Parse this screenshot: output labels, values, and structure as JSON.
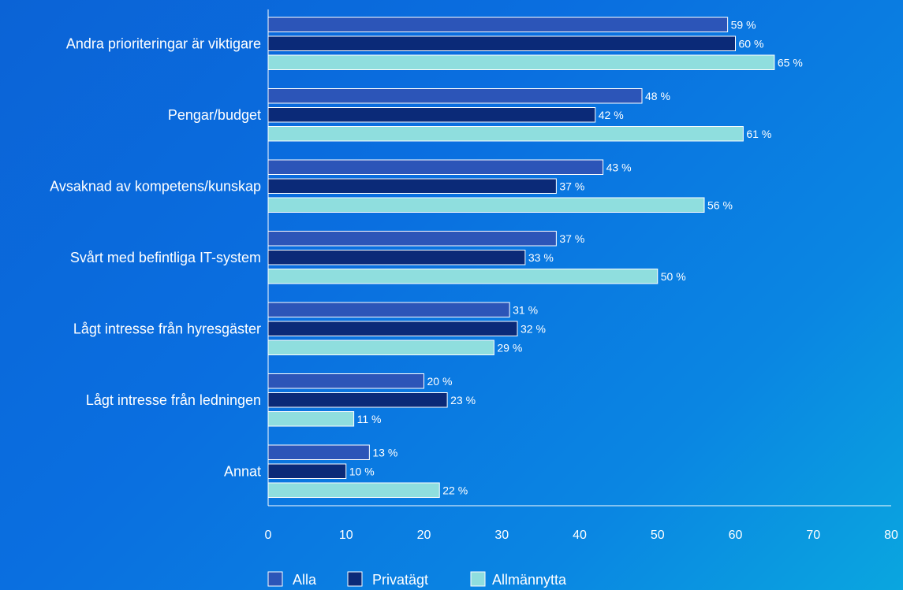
{
  "chart_data": {
    "type": "bar",
    "orientation": "horizontal",
    "categories": [
      "Andra prioriteringar är viktigare",
      "Pengar/budget",
      "Avsaknad av kompetens/kunskap",
      "Svårt med befintliga IT-system",
      "Lågt intresse från hyresgäster",
      "Lågt intresse från ledningen",
      "Annat"
    ],
    "series": [
      {
        "name": "Alla",
        "color": "#2c55b8",
        "values": [
          59,
          48,
          43,
          37,
          31,
          20,
          13
        ]
      },
      {
        "name": "Privatägt",
        "color": "#0b2a78",
        "values": [
          60,
          42,
          37,
          33,
          32,
          23,
          10
        ]
      },
      {
        "name": "Allmännytta",
        "color": "#8fdede",
        "values": [
          65,
          61,
          56,
          50,
          29,
          11,
          22
        ]
      }
    ],
    "value_suffix": " %",
    "xlim": [
      0,
      80
    ],
    "xticks": [
      0,
      10,
      20,
      30,
      40,
      50,
      60,
      70,
      80
    ],
    "grid": false,
    "legend_position": "bottom"
  }
}
